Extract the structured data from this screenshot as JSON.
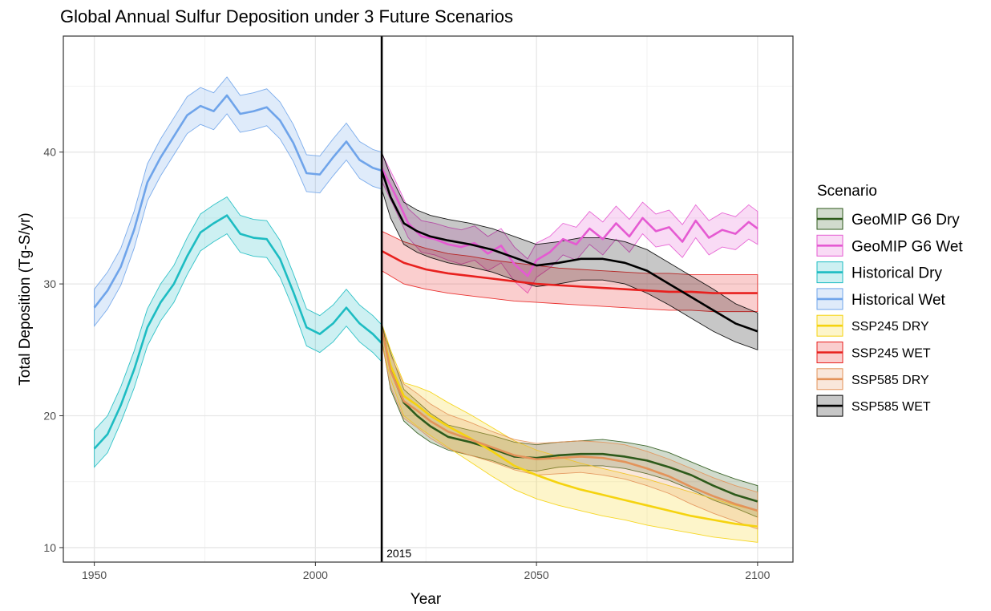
{
  "chart_data": {
    "type": "line",
    "title": "Global Annual Sulfur Deposition under 3 Future Scenarios",
    "xlabel": "Year",
    "ylabel": "Total Deposition (Tg-S/yr)",
    "xlim": [
      1943,
      2108
    ],
    "ylim": [
      8.9,
      48.8
    ],
    "x_ticks": [
      1950,
      2000,
      2050,
      2100
    ],
    "y_ticks": [
      10,
      20,
      30,
      40
    ],
    "grid": true,
    "legend": {
      "title": "Scenario",
      "position": "right"
    },
    "vline": {
      "x": 2015,
      "label": "2015",
      "color": "#000000"
    },
    "series": [
      {
        "name": "GeoMIP G6 Dry",
        "color": "#2d5a1b",
        "x": [
          2015,
          2017,
          2020,
          2023,
          2026,
          2030,
          2035,
          2040,
          2045,
          2050,
          2055,
          2060,
          2065,
          2070,
          2075,
          2080,
          2085,
          2090,
          2095,
          2100
        ],
        "values": [
          26.8,
          23.5,
          21.0,
          20.0,
          19.2,
          18.4,
          18.0,
          17.5,
          16.9,
          16.8,
          17.0,
          17.1,
          17.1,
          16.9,
          16.6,
          16.1,
          15.5,
          14.7,
          14.0,
          13.5
        ],
        "lower": [
          25.8,
          22.0,
          19.6,
          18.7,
          18.0,
          17.4,
          17.0,
          16.6,
          16.0,
          15.8,
          16.1,
          16.2,
          16.2,
          16.0,
          15.6,
          15.1,
          14.4,
          13.6,
          13.0,
          12.3
        ],
        "upper": [
          27.0,
          24.8,
          22.0,
          21.1,
          20.2,
          19.3,
          18.9,
          18.5,
          18.0,
          17.8,
          18.0,
          18.1,
          18.2,
          18.0,
          17.7,
          17.2,
          16.5,
          15.8,
          15.2,
          14.7
        ]
      },
      {
        "name": "GeoMIP G6 Wet",
        "color": "#e55ad2",
        "x": [
          2015,
          2018,
          2021,
          2024,
          2027,
          2030,
          2033,
          2036,
          2039,
          2042,
          2045,
          2048,
          2050,
          2053,
          2056,
          2059,
          2062,
          2065,
          2068,
          2071,
          2074,
          2077,
          2080,
          2083,
          2086,
          2089,
          2092,
          2095,
          2098,
          2100
        ],
        "values": [
          38.8,
          36.8,
          34.6,
          33.6,
          33.4,
          33.0,
          32.8,
          33.1,
          32.3,
          32.9,
          31.5,
          30.6,
          31.8,
          32.4,
          33.4,
          33.0,
          34.2,
          33.4,
          34.6,
          33.6,
          35.0,
          34.0,
          34.3,
          33.2,
          34.8,
          33.5,
          34.1,
          33.8,
          34.7,
          34.2
        ],
        "lower": [
          37.8,
          35.7,
          33.5,
          32.4,
          32.2,
          31.8,
          31.5,
          31.8,
          31.0,
          31.6,
          30.2,
          29.3,
          30.5,
          31.2,
          32.2,
          31.8,
          33.0,
          32.2,
          33.4,
          32.4,
          33.8,
          32.8,
          33.0,
          32.0,
          33.5,
          32.2,
          32.8,
          32.6,
          33.4,
          33.0
        ],
        "upper": [
          39.9,
          37.9,
          35.7,
          34.8,
          34.6,
          34.3,
          34.1,
          34.4,
          33.6,
          34.2,
          32.8,
          31.9,
          33.1,
          33.6,
          34.6,
          34.3,
          35.5,
          34.7,
          35.9,
          34.9,
          36.2,
          35.3,
          35.6,
          34.5,
          36.0,
          34.8,
          35.4,
          35.1,
          36.0,
          35.5
        ]
      },
      {
        "name": "Historical Dry",
        "color": "#1dbcc2",
        "x": [
          1950,
          1953,
          1956,
          1959,
          1962,
          1965,
          1968,
          1971,
          1974,
          1977,
          1980,
          1983,
          1986,
          1989,
          1992,
          1995,
          1998,
          2001,
          2004,
          2007,
          2010,
          2013,
          2015
        ],
        "values": [
          17.5,
          18.6,
          20.8,
          23.5,
          26.7,
          28.6,
          30.0,
          32.1,
          33.9,
          34.6,
          35.2,
          33.8,
          33.5,
          33.4,
          31.9,
          29.4,
          26.7,
          26.2,
          27.0,
          28.2,
          27.0,
          26.2,
          25.5
        ],
        "lower": [
          16.1,
          17.2,
          19.5,
          22.1,
          25.3,
          27.2,
          28.6,
          30.7,
          32.5,
          33.2,
          33.8,
          32.4,
          32.1,
          32.0,
          30.5,
          28.1,
          25.3,
          24.8,
          25.6,
          26.8,
          25.6,
          24.8,
          24.1
        ],
        "upper": [
          18.9,
          20.0,
          22.2,
          24.9,
          28.1,
          30.0,
          31.4,
          33.5,
          35.3,
          36.0,
          36.6,
          35.2,
          34.9,
          34.8,
          33.3,
          30.8,
          28.1,
          27.6,
          28.4,
          29.6,
          28.4,
          27.6,
          26.9
        ]
      },
      {
        "name": "Historical Wet",
        "color": "#6fa4ea",
        "x": [
          1950,
          1953,
          1956,
          1959,
          1962,
          1965,
          1968,
          1971,
          1974,
          1977,
          1980,
          1983,
          1986,
          1989,
          1992,
          1995,
          1998,
          2001,
          2004,
          2007,
          2010,
          2013,
          2015
        ],
        "values": [
          28.2,
          29.5,
          31.3,
          34.1,
          37.7,
          39.6,
          41.2,
          42.8,
          43.5,
          43.1,
          44.3,
          42.9,
          43.1,
          43.4,
          42.4,
          40.7,
          38.4,
          38.3,
          39.6,
          40.8,
          39.4,
          38.8,
          38.6
        ],
        "lower": [
          26.8,
          28.1,
          29.9,
          32.7,
          36.3,
          38.2,
          39.8,
          41.4,
          42.1,
          41.7,
          42.9,
          41.5,
          41.7,
          42.0,
          41.0,
          39.3,
          37.0,
          36.9,
          38.2,
          39.4,
          38.0,
          37.4,
          37.2
        ],
        "upper": [
          29.6,
          30.9,
          32.7,
          35.5,
          39.1,
          41.0,
          42.6,
          44.2,
          44.9,
          44.5,
          45.7,
          44.3,
          44.5,
          44.8,
          43.8,
          42.1,
          39.8,
          39.7,
          41.0,
          42.2,
          40.8,
          40.2,
          40.0
        ]
      },
      {
        "name": "SSP245 DRY",
        "color": "#f5d30f",
        "x": [
          2015,
          2017,
          2020,
          2023,
          2026,
          2030,
          2035,
          2040,
          2045,
          2050,
          2055,
          2060,
          2065,
          2070,
          2075,
          2080,
          2085,
          2090,
          2095,
          2100
        ],
        "values": [
          26.5,
          23.8,
          21.5,
          20.8,
          20.0,
          19.2,
          18.3,
          17.3,
          16.2,
          15.5,
          14.9,
          14.4,
          14.0,
          13.6,
          13.2,
          12.8,
          12.4,
          12.1,
          11.8,
          11.6
        ],
        "lower": [
          25.5,
          22.8,
          20.0,
          19.2,
          18.5,
          17.6,
          16.5,
          15.4,
          14.4,
          13.7,
          13.2,
          12.8,
          12.4,
          12.1,
          11.7,
          11.4,
          11.1,
          10.8,
          10.6,
          10.4
        ],
        "upper": [
          27.0,
          25.0,
          22.5,
          22.2,
          21.8,
          21.0,
          20.1,
          19.1,
          18.1,
          17.4,
          16.9,
          16.4,
          16.0,
          15.6,
          15.2,
          14.7,
          14.2,
          13.7,
          13.2,
          12.8
        ]
      },
      {
        "name": "SSP245 WET",
        "color": "#e8201e",
        "x": [
          2015,
          2020,
          2025,
          2030,
          2035,
          2040,
          2045,
          2050,
          2055,
          2060,
          2065,
          2070,
          2075,
          2080,
          2085,
          2090,
          2095,
          2100
        ],
        "values": [
          32.5,
          31.6,
          31.1,
          30.8,
          30.6,
          30.4,
          30.2,
          30.0,
          29.9,
          29.8,
          29.7,
          29.6,
          29.5,
          29.4,
          29.4,
          29.3,
          29.3,
          29.3
        ],
        "lower": [
          31.0,
          30.0,
          29.6,
          29.3,
          29.1,
          28.9,
          28.7,
          28.6,
          28.5,
          28.4,
          28.3,
          28.2,
          28.1,
          28.0,
          28.0,
          27.9,
          27.9,
          27.9
        ],
        "upper": [
          34.0,
          33.2,
          32.7,
          32.3,
          32.1,
          31.8,
          31.6,
          31.4,
          31.2,
          31.1,
          31.0,
          30.9,
          30.8,
          30.8,
          30.7,
          30.7,
          30.7,
          30.7
        ]
      },
      {
        "name": "SSP585 DRY",
        "color": "#e3935a",
        "x": [
          2015,
          2017,
          2020,
          2023,
          2026,
          2030,
          2035,
          2040,
          2045,
          2050,
          2055,
          2060,
          2065,
          2070,
          2075,
          2080,
          2085,
          2090,
          2095,
          2100
        ],
        "values": [
          26.6,
          23.4,
          21.1,
          20.4,
          19.6,
          18.8,
          18.2,
          17.6,
          17.0,
          16.7,
          16.8,
          16.9,
          16.8,
          16.5,
          16.0,
          15.4,
          14.6,
          13.9,
          13.3,
          12.8
        ],
        "lower": [
          25.6,
          22.2,
          19.8,
          19.1,
          18.3,
          17.5,
          17.0,
          16.5,
          15.9,
          15.5,
          15.6,
          15.7,
          15.5,
          15.2,
          14.7,
          14.1,
          13.3,
          12.6,
          12.0,
          11.4
        ],
        "upper": [
          27.0,
          24.6,
          22.4,
          21.7,
          20.9,
          20.1,
          19.5,
          18.8,
          18.2,
          17.9,
          18.0,
          18.1,
          18.0,
          17.8,
          17.3,
          16.7,
          16.0,
          15.3,
          14.7,
          14.2
        ]
      },
      {
        "name": "SSP585 WET",
        "color": "#000000",
        "x": [
          2015,
          2017,
          2020,
          2023,
          2026,
          2030,
          2035,
          2040,
          2045,
          2050,
          2055,
          2060,
          2065,
          2070,
          2075,
          2080,
          2085,
          2090,
          2095,
          2100
        ],
        "values": [
          38.6,
          36.6,
          34.6,
          34.0,
          33.6,
          33.3,
          33.0,
          32.6,
          32.0,
          31.4,
          31.6,
          31.9,
          31.9,
          31.6,
          31.0,
          30.0,
          29.0,
          28.0,
          27.0,
          26.4
        ],
        "lower": [
          37.2,
          35.0,
          33.0,
          32.4,
          32.0,
          31.6,
          31.3,
          30.9,
          30.3,
          29.8,
          30.0,
          30.3,
          30.3,
          30.0,
          29.3,
          28.4,
          27.4,
          26.4,
          25.6,
          25.0
        ],
        "upper": [
          40.0,
          38.2,
          36.2,
          35.6,
          35.2,
          34.9,
          34.6,
          34.2,
          33.6,
          33.0,
          33.2,
          33.5,
          33.5,
          33.2,
          32.6,
          31.6,
          30.6,
          29.6,
          28.5,
          27.8
        ]
      }
    ]
  }
}
